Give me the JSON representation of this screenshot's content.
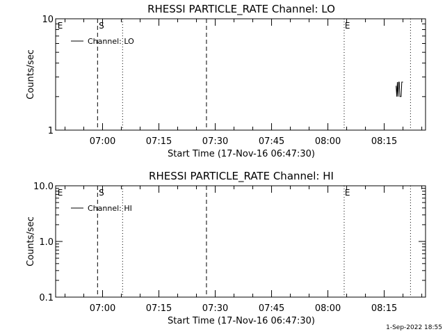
{
  "footer": {
    "timestamp": "1-Sep-2022 18:55"
  },
  "chart_data": [
    {
      "type": "line",
      "title": "RHESSI PARTICLE_RATE Channel: LO",
      "xlabel": "Start Time (17-Nov-16 06:47:30)",
      "ylabel": "Counts/sec",
      "x_range": [
        "06:47:30",
        "08:26:00"
      ],
      "x_ticks": [
        "07:00",
        "07:15",
        "07:30",
        "07:45",
        "08:00",
        "08:15"
      ],
      "y_scale": "log",
      "ylim": [
        1,
        10
      ],
      "y_ticks": [
        "1",
        "10"
      ],
      "legend": {
        "position": "top-left",
        "entries": [
          "Channel: LO"
        ]
      },
      "vertical_lines": [
        {
          "time": "06:58:40",
          "style": "dashed"
        },
        {
          "time": "07:05:20",
          "style": "dotted"
        },
        {
          "time": "07:27:40",
          "style": "dashed"
        },
        {
          "time": "08:04:20",
          "style": "dotted"
        },
        {
          "time": "08:22:00",
          "style": "dotted"
        }
      ],
      "markers": [
        {
          "time": "06:48:00",
          "label": "E"
        },
        {
          "time": "06:59:00",
          "label": "S"
        },
        {
          "time": "08:04:30",
          "label": "E"
        }
      ],
      "series": [
        {
          "name": "Channel: LO",
          "points": [
            {
              "t": "08:18:10",
              "y": 2.5
            },
            {
              "t": "08:18:20",
              "y": 2.0
            },
            {
              "t": "08:18:30",
              "y": 2.7
            },
            {
              "t": "08:18:40",
              "y": 2.0
            },
            {
              "t": "08:18:50",
              "y": 2.7
            },
            {
              "t": "08:19:00",
              "y": 2.7
            },
            {
              "t": "08:19:10",
              "y": 2.0
            },
            {
              "t": "08:19:30",
              "y": 2.0
            },
            {
              "t": "08:19:40",
              "y": 2.7
            },
            {
              "t": "08:20:00",
              "y": 2.7
            }
          ]
        }
      ]
    },
    {
      "type": "line",
      "title": "RHESSI PARTICLE_RATE Channel: HI",
      "xlabel": "Start Time (17-Nov-16 06:47:30)",
      "ylabel": "Counts/sec",
      "x_range": [
        "06:47:30",
        "08:26:00"
      ],
      "x_ticks": [
        "07:00",
        "07:15",
        "07:30",
        "07:45",
        "08:00",
        "08:15"
      ],
      "y_scale": "log",
      "ylim": [
        0.1,
        10
      ],
      "y_ticks": [
        "0.1",
        "1.0",
        "10.0"
      ],
      "legend": {
        "position": "top-left",
        "entries": [
          "Channel: HI"
        ]
      },
      "vertical_lines": [
        {
          "time": "06:58:40",
          "style": "dashed"
        },
        {
          "time": "07:05:20",
          "style": "dotted"
        },
        {
          "time": "07:27:40",
          "style": "dashed"
        },
        {
          "time": "08:04:20",
          "style": "dotted"
        },
        {
          "time": "08:22:00",
          "style": "dotted"
        }
      ],
      "markers": [
        {
          "time": "06:48:00",
          "label": "E"
        },
        {
          "time": "06:59:00",
          "label": "S"
        },
        {
          "time": "08:04:30",
          "label": "E"
        }
      ],
      "series": [
        {
          "name": "Channel: HI",
          "points": []
        }
      ]
    }
  ]
}
